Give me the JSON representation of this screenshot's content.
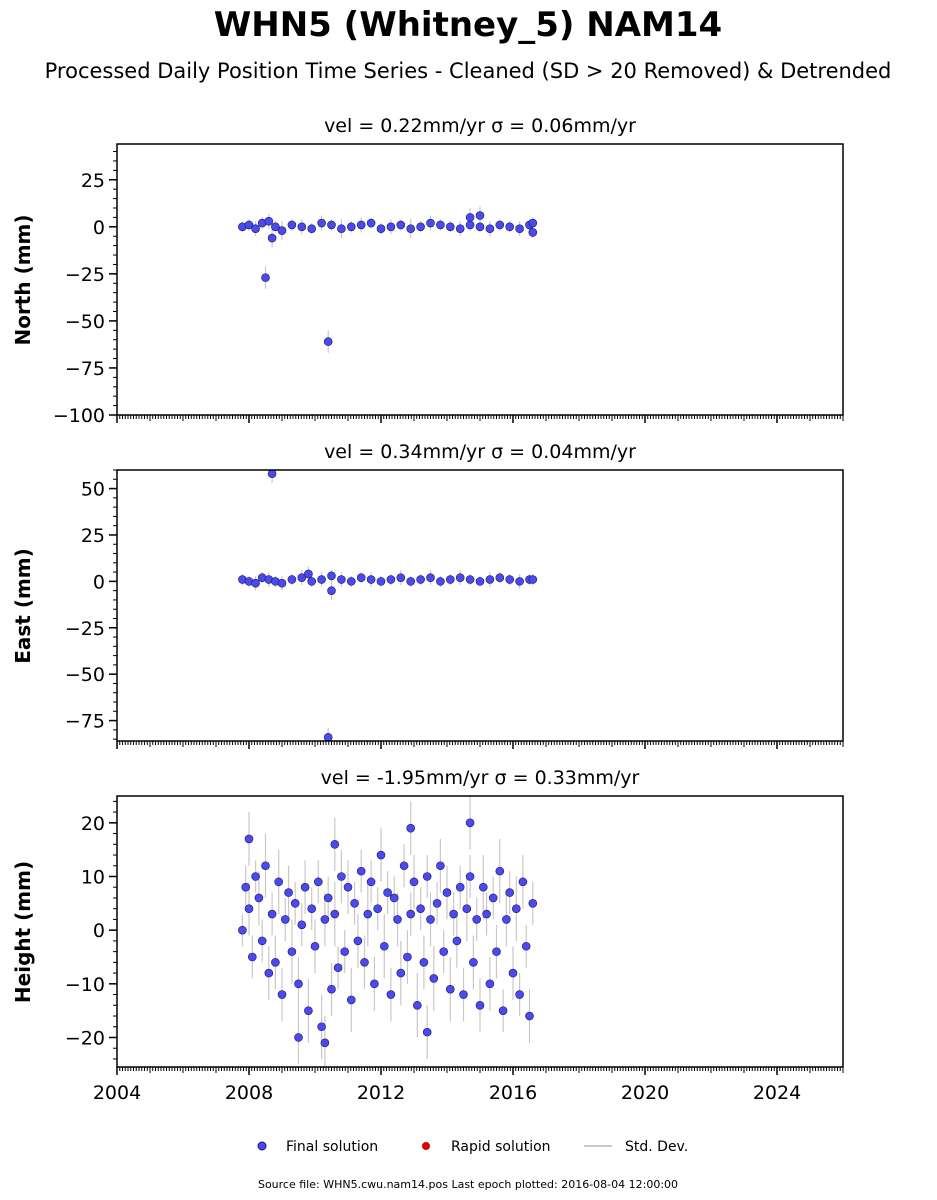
{
  "title": "WHN5 (Whitney_5) NAM14",
  "subtitle": "Processed Daily Position Time Series - Cleaned (SD > 20 Removed) & Detrended",
  "footer": "Source file: WHN5.cwu.nam14.pos  Last epoch plotted: 2016-08-04 12:00:00",
  "legend": {
    "final": "Final solution",
    "rapid": "Rapid solution",
    "std": "Std. Dev."
  },
  "colors": {
    "final": "#4a4af0",
    "final_edge": "#1a1a5a",
    "rapid": "#e00000",
    "std": "#c8c8c8"
  },
  "chart_data": [
    {
      "type": "scatter",
      "title": "vel = 0.22mm/yr   σ = 0.06mm/yr",
      "ylabel": "North (mm)",
      "xlim": [
        2004,
        2026
      ],
      "ylim": [
        -100,
        44
      ],
      "yticks": [
        25,
        0,
        -25,
        -50,
        -75,
        -100
      ],
      "ytick_labels": [
        "25",
        "0",
        "−25",
        "−50",
        "−75",
        "−100"
      ],
      "series": [
        {
          "x": [
            2007.8,
            2008.0,
            2008.2,
            2008.4,
            2008.6,
            2008.8,
            2009.0,
            2009.3,
            2009.6,
            2009.9,
            2010.2,
            2010.5,
            2010.8,
            2011.1,
            2011.4,
            2011.7,
            2012.0,
            2012.3,
            2012.6,
            2012.9,
            2013.2,
            2013.5,
            2013.8,
            2014.1,
            2014.4,
            2014.7,
            2015.0,
            2015.3,
            2015.6,
            2015.9,
            2016.2,
            2016.5,
            2016.6,
            2008.5,
            2010.4,
            2014.7,
            2015.0,
            2008.7,
            2016.6
          ],
          "y": [
            0,
            1,
            -1,
            2,
            3,
            0,
            -2,
            1,
            0,
            -1,
            2,
            1,
            -1,
            0,
            1,
            2,
            -1,
            0,
            1,
            -1,
            0,
            2,
            1,
            0,
            -1,
            1,
            0,
            -1,
            1,
            0,
            -1,
            1,
            2,
            -27,
            -61,
            5,
            6,
            -6,
            -3
          ],
          "err": [
            3,
            3,
            4,
            3,
            4,
            3,
            5,
            3,
            4,
            3,
            4,
            3,
            5,
            3,
            4,
            3,
            3,
            4,
            3,
            5,
            3,
            4,
            3,
            3,
            4,
            3,
            3,
            4,
            3,
            3,
            4,
            3,
            3,
            6,
            6,
            5,
            5,
            5,
            3
          ]
        }
      ]
    },
    {
      "type": "scatter",
      "title": "vel = 0.34mm/yr   σ = 0.04mm/yr",
      "ylabel": "East (mm)",
      "xlim": [
        2004,
        2026
      ],
      "ylim": [
        -86,
        60
      ],
      "yticks": [
        50,
        25,
        0,
        -25,
        -50,
        -75
      ],
      "ytick_labels": [
        "50",
        "25",
        "0",
        "−25",
        "−50",
        "−75"
      ],
      "series": [
        {
          "x": [
            2007.8,
            2008.0,
            2008.2,
            2008.4,
            2008.6,
            2008.8,
            2009.0,
            2009.3,
            2009.6,
            2009.9,
            2010.2,
            2010.5,
            2010.8,
            2011.1,
            2011.4,
            2011.7,
            2012.0,
            2012.3,
            2012.6,
            2012.9,
            2013.2,
            2013.5,
            2013.8,
            2014.1,
            2014.4,
            2014.7,
            2015.0,
            2015.3,
            2015.6,
            2015.9,
            2016.2,
            2016.5,
            2016.6,
            2008.7,
            2010.4,
            2010.5,
            2009.8
          ],
          "y": [
            1,
            0,
            -1,
            2,
            1,
            0,
            -1,
            1,
            2,
            0,
            1,
            3,
            1,
            0,
            2,
            1,
            0,
            1,
            2,
            0,
            1,
            2,
            0,
            1,
            2,
            1,
            0,
            1,
            2,
            1,
            0,
            1,
            1,
            58,
            -84,
            -5,
            4
          ],
          "err": [
            3,
            3,
            4,
            3,
            4,
            3,
            4,
            3,
            4,
            3,
            4,
            3,
            4,
            3,
            3,
            4,
            3,
            3,
            4,
            3,
            3,
            4,
            3,
            3,
            4,
            3,
            3,
            4,
            3,
            3,
            4,
            3,
            3,
            5,
            5,
            5,
            4
          ]
        }
      ]
    },
    {
      "type": "scatter",
      "title": "vel = -1.95mm/yr   σ = 0.33mm/yr",
      "ylabel": "Height (mm)",
      "xlim": [
        2004,
        2026
      ],
      "ylim": [
        -25.5,
        25
      ],
      "yticks": [
        20,
        10,
        0,
        -10,
        -20
      ],
      "ytick_labels": [
        "20",
        "10",
        "0",
        "−10",
        "−20"
      ],
      "series": [
        {
          "x": [
            2007.8,
            2007.9,
            2008.0,
            2008.1,
            2008.2,
            2008.3,
            2008.4,
            2008.5,
            2008.6,
            2008.7,
            2008.8,
            2008.9,
            2009.0,
            2009.1,
            2009.2,
            2009.3,
            2009.4,
            2009.5,
            2009.6,
            2009.7,
            2009.8,
            2009.9,
            2010.0,
            2010.1,
            2010.2,
            2010.3,
            2010.4,
            2010.5,
            2010.6,
            2010.7,
            2010.8,
            2010.9,
            2011.0,
            2011.1,
            2011.2,
            2011.3,
            2011.4,
            2011.5,
            2011.6,
            2011.7,
            2011.8,
            2011.9,
            2012.0,
            2012.1,
            2012.2,
            2012.3,
            2012.4,
            2012.5,
            2012.6,
            2012.7,
            2012.8,
            2012.9,
            2013.0,
            2013.1,
            2013.2,
            2013.3,
            2013.4,
            2013.5,
            2013.6,
            2013.7,
            2013.8,
            2013.9,
            2014.0,
            2014.1,
            2014.2,
            2014.3,
            2014.4,
            2014.5,
            2014.6,
            2014.7,
            2014.8,
            2014.9,
            2015.0,
            2015.1,
            2015.2,
            2015.3,
            2015.4,
            2015.5,
            2015.6,
            2015.7,
            2015.8,
            2015.9,
            2016.0,
            2016.1,
            2016.2,
            2016.3,
            2016.4,
            2016.5,
            2016.6,
            2008.0,
            2009.5,
            2010.3,
            2010.6,
            2012.9,
            2014.7,
            2013.4
          ],
          "y": [
            0,
            8,
            4,
            -5,
            10,
            6,
            -2,
            12,
            -8,
            3,
            -6,
            9,
            -12,
            2,
            7,
            -4,
            5,
            -10,
            1,
            8,
            -15,
            4,
            -3,
            9,
            -18,
            2,
            6,
            -11,
            3,
            -7,
            10,
            -4,
            8,
            -13,
            5,
            -2,
            11,
            -6,
            3,
            9,
            -10,
            4,
            14,
            -3,
            7,
            -12,
            6,
            2,
            -8,
            12,
            -5,
            3,
            9,
            -14,
            4,
            -6,
            10,
            2,
            -9,
            5,
            12,
            -4,
            7,
            -11,
            3,
            -2,
            8,
            -12,
            4,
            10,
            -6,
            2,
            -14,
            8,
            3,
            -10,
            6,
            -4,
            11,
            -15,
            2,
            7,
            -8,
            4,
            -12,
            9,
            -3,
            -16,
            5,
            17,
            -20,
            -21,
            16,
            19,
            20,
            -19
          ],
          "err": [
            3,
            4,
            5,
            4,
            3,
            5,
            4,
            6,
            5,
            4,
            5,
            6,
            5,
            4,
            5,
            6,
            4,
            5,
            4,
            5,
            6,
            4,
            5,
            4,
            6,
            5,
            4,
            5,
            6,
            4,
            5,
            4,
            5,
            6,
            4,
            5,
            4,
            5,
            6,
            4,
            5,
            4,
            5,
            6,
            4,
            5,
            4,
            5,
            6,
            4,
            5,
            4,
            5,
            6,
            4,
            5,
            4,
            5,
            6,
            4,
            5,
            4,
            5,
            6,
            4,
            5,
            4,
            5,
            6,
            4,
            5,
            4,
            5,
            6,
            4,
            5,
            4,
            5,
            6,
            4,
            5,
            4,
            5,
            6,
            4,
            5,
            4,
            5,
            4,
            5,
            5,
            5,
            5,
            5,
            5,
            5
          ]
        }
      ],
      "xticks": [
        2004,
        2008,
        2012,
        2016,
        2020,
        2024
      ],
      "xtick_labels": [
        "2004",
        "2008",
        "2012",
        "2016",
        "2020",
        "2024"
      ]
    }
  ]
}
